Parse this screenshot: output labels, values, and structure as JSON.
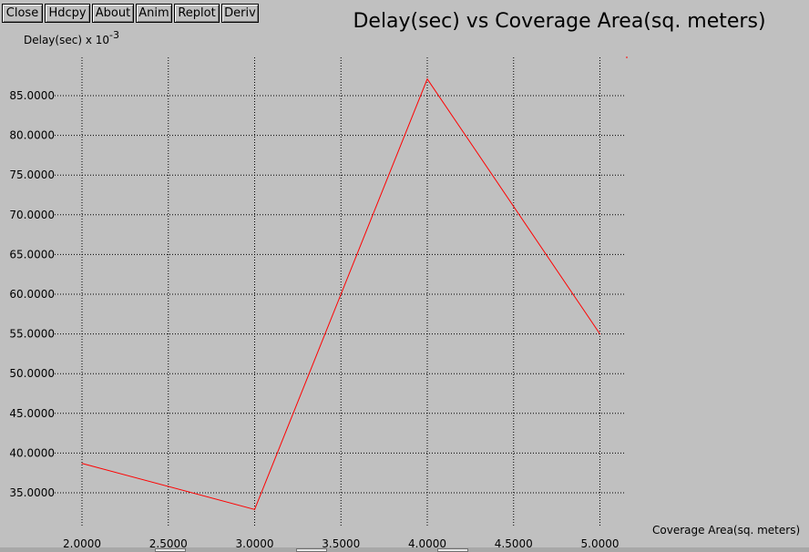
{
  "toolbar": {
    "buttons": [
      {
        "id": "close",
        "label": "Close"
      },
      {
        "id": "hdcpy",
        "label": "Hdcpy"
      },
      {
        "id": "about",
        "label": "About"
      },
      {
        "id": "anim",
        "label": "Anim"
      },
      {
        "id": "replot",
        "label": "Replot"
      },
      {
        "id": "deriv",
        "label": "Deriv"
      }
    ]
  },
  "chart_data": {
    "type": "line",
    "title": "Delay(sec) vs Coverage Area(sq. meters)",
    "ylabel_base": "Delay(sec) x 10",
    "ylabel_exponent": "-3",
    "xlabel": "Coverage Area(sq. meters)",
    "x_ticks": [
      "2.0000",
      "2.5000",
      "3.0000",
      "3.5000",
      "4.0000",
      "4.5000",
      "5.0000"
    ],
    "y_ticks": [
      "35.0000",
      "40.0000",
      "45.0000",
      "50.0000",
      "55.0000",
      "60.0000",
      "65.0000",
      "70.0000",
      "75.0000",
      "80.0000",
      "85.0000"
    ],
    "xlim": [
      2.0,
      5.0
    ],
    "grid": true,
    "line_color": "#ff0000",
    "series": [
      {
        "x": [
          2.0,
          3.0,
          4.0,
          5.0
        ],
        "values": [
          38.7,
          32.9,
          87.1,
          55.0
        ]
      }
    ]
  }
}
